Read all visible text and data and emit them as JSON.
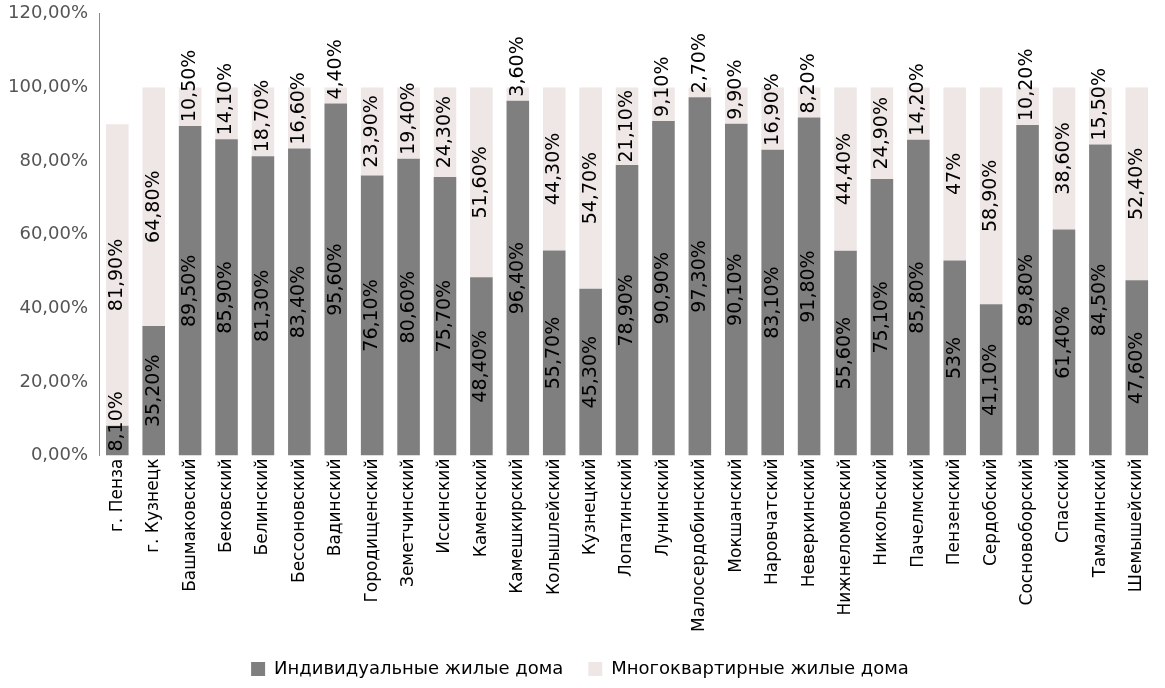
{
  "chart_data": {
    "type": "bar",
    "stacked": true,
    "legend": "bottom",
    "grid": false,
    "categories": [
      "г. Пенза",
      "г. Кузнецк",
      "Башмаковский",
      "Бековский",
      "Белинский",
      "Бессоновский",
      "Вадинский",
      "Городищенский",
      "Земетчинский",
      "Иссинский",
      "Каменский",
      "Камешкирский",
      "Колышлейский",
      "Кузнецкий",
      "Лопатинский",
      "Лунинский",
      "Малосердобинский",
      "Мокшанский",
      "Наровчатский",
      "Неверкинский",
      "Нижнеломовский",
      "Никольский",
      "Пачелмский",
      "Пензенский",
      "Сердобский",
      "Сосновоборский",
      "Спасский",
      "Тамалинский",
      "Шемышейский"
    ],
    "ylim": [
      0,
      120
    ],
    "yticks": [
      {
        "value": 0,
        "label": "0,00%"
      },
      {
        "value": 20,
        "label": "20,00%"
      },
      {
        "value": 40,
        "label": "40,00%"
      },
      {
        "value": 60,
        "label": "60,00%"
      },
      {
        "value": 80,
        "label": "80,00%"
      },
      {
        "value": 100,
        "label": "100,00%"
      },
      {
        "value": 120,
        "label": "120,00%"
      }
    ],
    "series": [
      {
        "name": "Индивидуальные жилые дома",
        "color": "#7f7f7f",
        "values": [
          8.1,
          35.2,
          89.5,
          85.9,
          81.3,
          83.4,
          95.6,
          76.1,
          80.6,
          75.7,
          48.4,
          96.4,
          55.7,
          45.3,
          78.9,
          90.9,
          97.3,
          90.1,
          83.1,
          91.8,
          55.6,
          75.1,
          85.8,
          53,
          41.1,
          89.8,
          61.4,
          84.5,
          47.6
        ],
        "value_labels": [
          "8,10%",
          "35,20%",
          "89,50%",
          "85,90%",
          "81,30%",
          "83,40%",
          "95,60%",
          "76,10%",
          "80,60%",
          "75,70%",
          "48,40%",
          "96,40%",
          "55,70%",
          "45,30%",
          "78,90%",
          "90,90%",
          "97,30%",
          "90,10%",
          "83,10%",
          "91,80%",
          "55,60%",
          "75,10%",
          "85,80%",
          "53%",
          "41,10%",
          "89,80%",
          "61,40%",
          "84,50%",
          "47,60%"
        ]
      },
      {
        "name": "Многоквартирные жилые дома",
        "color": "#efe6e6",
        "values": [
          81.9,
          64.8,
          10.5,
          14.1,
          18.7,
          16.6,
          4.4,
          23.9,
          19.4,
          24.3,
          51.6,
          3.6,
          44.3,
          54.7,
          21.1,
          9.1,
          2.7,
          9.9,
          16.9,
          8.2,
          44.4,
          24.9,
          14.2,
          47,
          58.9,
          10.2,
          38.6,
          15.5,
          52.4
        ],
        "value_labels": [
          "81,90%",
          "64,80%",
          "10,50%",
          "14,10%",
          "18,70%",
          "16,60%",
          "4,40%",
          "23,90%",
          "19,40%",
          "24,30%",
          "51,60%",
          "3,60%",
          "44,30%",
          "54,70%",
          "21,10%",
          "9,10%",
          "2,70%",
          "9,90%",
          "16,90%",
          "8,20%",
          "44,40%",
          "24,90%",
          "14,20%",
          "47%",
          "58,90%",
          "10,20%",
          "38,60%",
          "15,50%",
          "52,40%"
        ]
      }
    ]
  }
}
